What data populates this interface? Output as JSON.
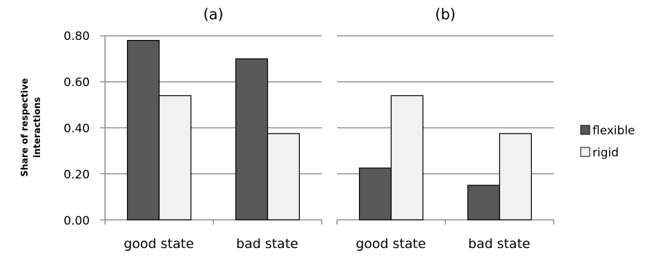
{
  "colors": {
    "flexible": "#595959",
    "rigid": "#f2f2f2",
    "bar_stroke": "#000000",
    "gridline": "#8c8c8c",
    "axis": "#8c8c8c"
  },
  "legend": {
    "position": "right",
    "entries": [
      {
        "name": "flexible",
        "color": "#595959"
      },
      {
        "name": "rigid",
        "color": "#f2f2f2"
      }
    ]
  },
  "chart_data": [
    {
      "type": "bar",
      "title": "(a)",
      "ylabel_lines": [
        "Share of respective",
        "interactions"
      ],
      "ylim": [
        0,
        0.8
      ],
      "yticks": [
        "0.00",
        "0.20",
        "0.40",
        "0.60",
        "0.80"
      ],
      "categories": [
        "good state",
        "bad state"
      ],
      "grid": true,
      "series": [
        {
          "name": "flexible",
          "values": [
            0.78,
            0.7
          ]
        },
        {
          "name": "rigid",
          "values": [
            0.54,
            0.375
          ]
        }
      ]
    },
    {
      "type": "bar",
      "title": "(b)",
      "ylim": [
        0,
        0.8
      ],
      "categories": [
        "good state",
        "bad state"
      ],
      "grid": true,
      "series": [
        {
          "name": "flexible",
          "values": [
            0.225,
            0.15
          ]
        },
        {
          "name": "rigid",
          "values": [
            0.54,
            0.375
          ]
        }
      ]
    }
  ]
}
